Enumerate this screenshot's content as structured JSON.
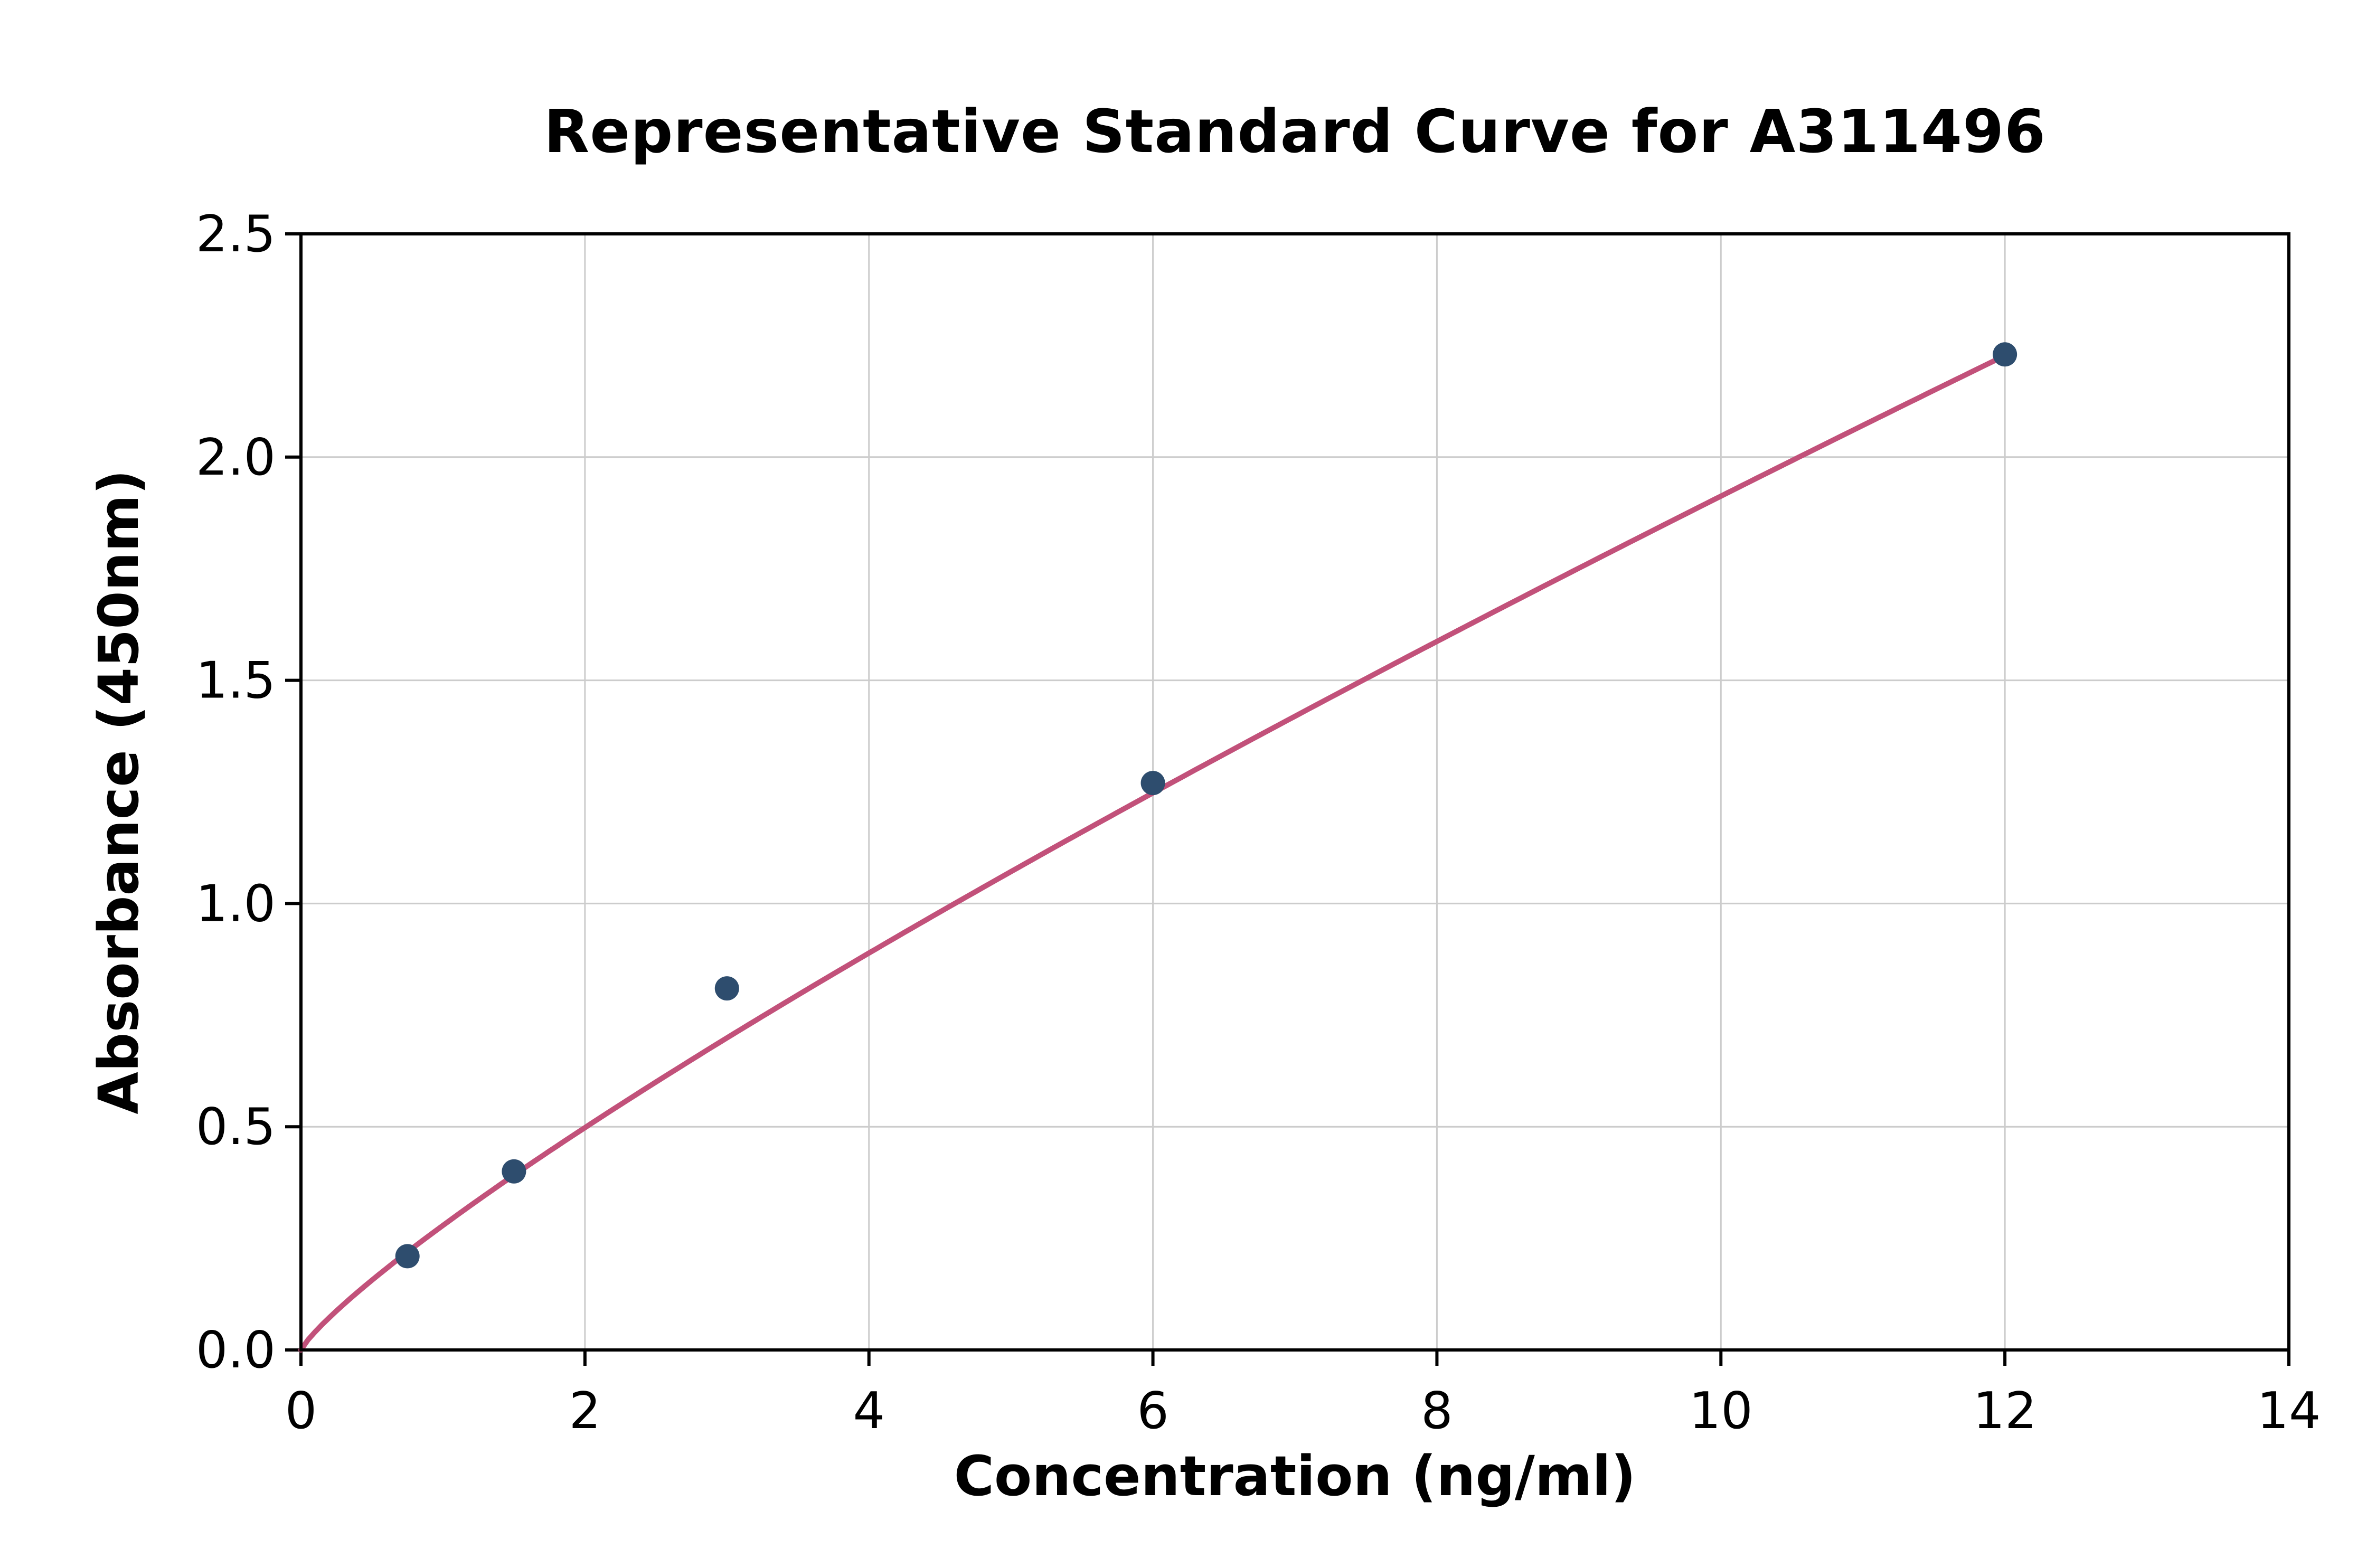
{
  "chart_data": {
    "type": "scatter",
    "title": "Representative Standard Curve for A311496",
    "xlabel": "Concentration (ng/ml)",
    "ylabel": "Absorbance (450nm)",
    "xlim": [
      0,
      14
    ],
    "ylim": [
      0,
      2.5
    ],
    "grid": true,
    "legend": "none",
    "x_ticks": [
      0,
      2,
      4,
      6,
      8,
      10,
      12,
      14
    ],
    "x_tick_labels": [
      "0",
      "2",
      "4",
      "6",
      "8",
      "10",
      "12",
      "14"
    ],
    "y_ticks": [
      0.0,
      0.5,
      1.0,
      1.5,
      2.0,
      2.5
    ],
    "y_tick_labels": [
      "0.0",
      "0.5",
      "1.0",
      "1.5",
      "2.0",
      "2.5"
    ],
    "points": [
      {
        "x": 0.75,
        "y": 0.21
      },
      {
        "x": 1.5,
        "y": 0.4
      },
      {
        "x": 3,
        "y": 0.81
      },
      {
        "x": 6,
        "y": 1.27
      },
      {
        "x": 12,
        "y": 2.23
      }
    ],
    "fit_curve": {
      "type": "power",
      "equation": "y = a * x^b",
      "a": 0.279,
      "b": 0.836,
      "x_start": 0,
      "x_end": 12
    },
    "colors": {
      "points": "#2e4d6e",
      "curve": "#c2517a",
      "grid": "#cccccc",
      "axis": "#000000",
      "background": "#ffffff"
    }
  }
}
